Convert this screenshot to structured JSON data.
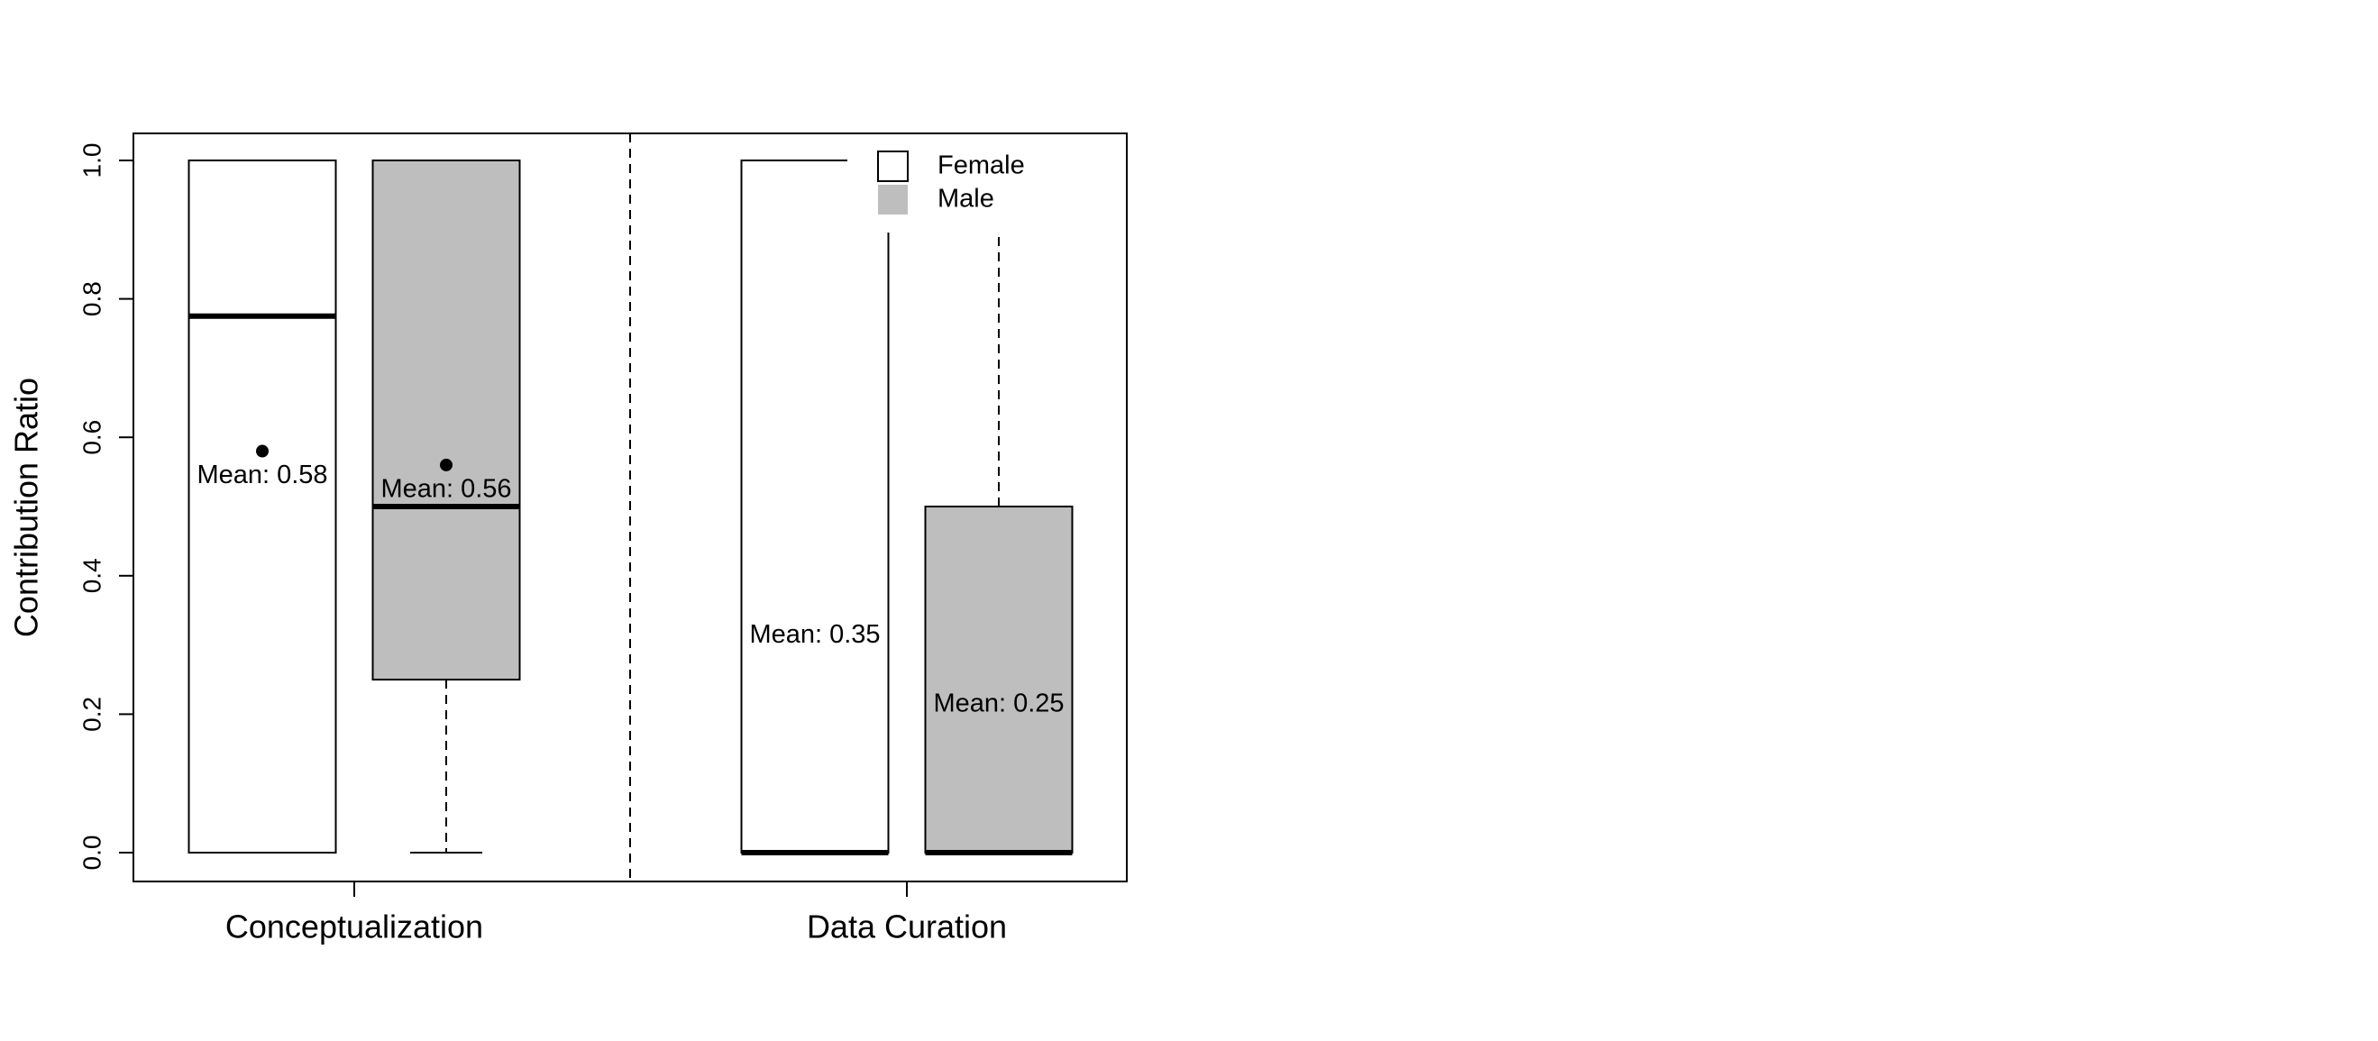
{
  "chart_data": {
    "type": "boxplot",
    "ylabel": "Contribution Ratio",
    "xlabel": "",
    "ylim": [
      0,
      1
    ],
    "yticks": [
      "0.0",
      "0.2",
      "0.4",
      "0.6",
      "0.8",
      "1.0"
    ],
    "categories": [
      "Conceptualization",
      "Data Curation"
    ],
    "legend": {
      "position": "top-right",
      "items": [
        {
          "label": "Female",
          "color": "#ffffff"
        },
        {
          "label": "Male",
          "color": "#bebebe"
        }
      ]
    },
    "boxes": [
      {
        "category": "Conceptualization",
        "group": "Female",
        "whisker_low": 0.0,
        "q1": 0.0,
        "median": 0.775,
        "q3": 1.0,
        "whisker_high": 1.0,
        "mean": 0.58,
        "mean_label": "Mean: 0.58",
        "show_mean_point": true
      },
      {
        "category": "Conceptualization",
        "group": "Male",
        "whisker_low": 0.0,
        "q1": 0.25,
        "median": 0.5,
        "q3": 1.0,
        "whisker_high": 1.0,
        "mean": 0.56,
        "mean_label": "Mean: 0.56",
        "show_mean_point": true
      },
      {
        "category": "Data Curation",
        "group": "Female",
        "whisker_low": 0.0,
        "q1": 0.0,
        "median": 0.0,
        "q3": 1.0,
        "whisker_high": 1.0,
        "mean": 0.35,
        "mean_label": "Mean: 0.35",
        "show_mean_point": false
      },
      {
        "category": "Data Curation",
        "group": "Male",
        "whisker_low": 0.0,
        "q1": 0.0,
        "median": 0.0,
        "q3": 0.5,
        "whisker_high": 1.0,
        "mean": 0.25,
        "mean_label": "Mean: 0.25",
        "show_mean_point": false
      }
    ],
    "colors": {
      "Female": "#ffffff",
      "Male": "#bebebe",
      "stroke": "#000000"
    }
  }
}
